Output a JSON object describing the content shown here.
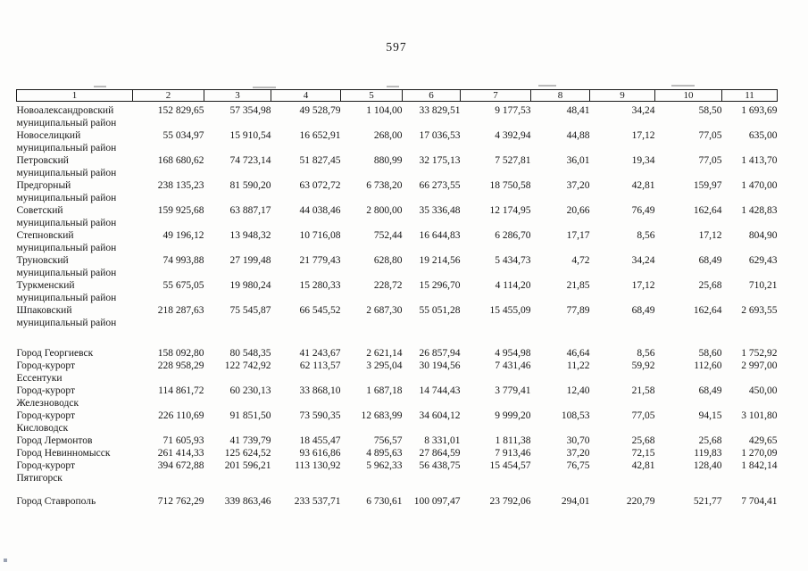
{
  "page": {
    "number": "597"
  },
  "table": {
    "columns": [
      "1",
      "2",
      "3",
      "4",
      "5",
      "6",
      "7",
      "8",
      "9",
      "10",
      "11"
    ],
    "rows": [
      {
        "name_lines": [
          "Новоалександровский",
          "муниципальный район"
        ],
        "values": [
          "152 829,65",
          "57 354,98",
          "49 528,79",
          "1 104,00",
          "33 829,51",
          "9 177,53",
          "48,41",
          "34,24",
          "58,50",
          "1 693,69"
        ]
      },
      {
        "name_lines": [
          "Новоселицкий",
          "муниципальный район"
        ],
        "values": [
          "55 034,97",
          "15 910,54",
          "16 652,91",
          "268,00",
          "17 036,53",
          "4 392,94",
          "44,88",
          "17,12",
          "77,05",
          "635,00"
        ]
      },
      {
        "name_lines": [
          "Петровский",
          "муниципальный район"
        ],
        "values": [
          "168 680,62",
          "74 723,14",
          "51 827,45",
          "880,99",
          "32 175,13",
          "7 527,81",
          "36,01",
          "19,34",
          "77,05",
          "1 413,70"
        ]
      },
      {
        "name_lines": [
          "Предгорный",
          "муниципальный район"
        ],
        "values": [
          "238 135,23",
          "81 590,20",
          "63 072,72",
          "6 738,20",
          "66 273,55",
          "18 750,58",
          "37,20",
          "42,81",
          "159,97",
          "1 470,00"
        ]
      },
      {
        "name_lines": [
          "Советский",
          "муниципальный район"
        ],
        "values": [
          "159 925,68",
          "63 887,17",
          "44 038,46",
          "2 800,00",
          "35 336,48",
          "12 174,95",
          "20,66",
          "76,49",
          "162,64",
          "1 428,83"
        ]
      },
      {
        "name_lines": [
          "Степновский",
          "муниципальный район"
        ],
        "values": [
          "49 196,12",
          "13 948,32",
          "10 716,08",
          "752,44",
          "16 644,83",
          "6 286,70",
          "17,17",
          "8,56",
          "17,12",
          "804,90"
        ]
      },
      {
        "name_lines": [
          "Труновский",
          "муниципальный район"
        ],
        "values": [
          "74 993,88",
          "27 199,48",
          "21 779,43",
          "628,80",
          "19 214,56",
          "5 434,73",
          "4,72",
          "34,24",
          "68,49",
          "629,43"
        ]
      },
      {
        "name_lines": [
          "Туркменский",
          "муниципальный район"
        ],
        "values": [
          "55 675,05",
          "19 980,24",
          "15 280,33",
          "228,72",
          "15 296,70",
          "4 114,20",
          "21,85",
          "17,12",
          "25,68",
          "710,21"
        ]
      },
      {
        "name_lines": [
          "Шпаковский",
          "муниципальный район"
        ],
        "values": [
          "218 287,63",
          "75 545,87",
          "66 545,52",
          "2 687,30",
          "55 051,28",
          "15 455,09",
          "77,89",
          "68,49",
          "162,64",
          "2 693,55"
        ]
      },
      {
        "gap_before": 20,
        "name_lines": [
          "Город Георгиевск"
        ],
        "values": [
          "158 092,80",
          "80 548,35",
          "41 243,67",
          "2 621,14",
          "26 857,94",
          "4 954,98",
          "46,64",
          "8,56",
          "58,60",
          "1 752,92"
        ]
      },
      {
        "name_lines": [
          "Город-курорт",
          "Ессентуки"
        ],
        "values": [
          "228 958,29",
          "122 742,92",
          "62 113,57",
          "3 295,04",
          "30 194,56",
          "7 431,46",
          "11,22",
          "59,92",
          "112,60",
          "2 997,00"
        ]
      },
      {
        "name_lines": [
          "Город-курорт",
          "Железноводск"
        ],
        "values": [
          "114 861,72",
          "60 230,13",
          "33 868,10",
          "1 687,18",
          "14 744,43",
          "3 779,41",
          "12,40",
          "21,58",
          "68,49",
          "450,00"
        ]
      },
      {
        "name_lines": [
          "Город-курорт",
          "Кисловодск"
        ],
        "values": [
          "226 110,69",
          "91 851,50",
          "73 590,35",
          "12 683,99",
          "34 604,12",
          "9 999,20",
          "108,53",
          "77,05",
          "94,15",
          "3 101,80"
        ]
      },
      {
        "name_lines": [
          "Город Лермонтов"
        ],
        "values": [
          "71 605,93",
          "41 739,79",
          "18 455,47",
          "756,57",
          "8 331,01",
          "1 811,38",
          "30,70",
          "25,68",
          "25,68",
          "429,65"
        ]
      },
      {
        "name_lines": [
          "Город Невинномысск"
        ],
        "values": [
          "261 414,33",
          "125 624,52",
          "93 616,86",
          "4 895,63",
          "27 864,59",
          "7 913,46",
          "37,20",
          "72,15",
          "119,83",
          "1 270,09"
        ]
      },
      {
        "name_lines": [
          "Город-курорт",
          "Пятигорск"
        ],
        "values": [
          "394 672,88",
          "201 596,21",
          "113 130,92",
          "5 962,33",
          "56 438,75",
          "15 454,57",
          "76,75",
          "42,81",
          "128,40",
          "1 842,14"
        ]
      },
      {
        "gap_before": 12,
        "name_lines": [
          "Город Ставрополь"
        ],
        "values": [
          "712 762,29",
          "339 863,46",
          "233 537,71",
          "6 730,61",
          "100 097,47",
          "23 792,06",
          "294,01",
          "220,79",
          "521,77",
          "7 704,41"
        ]
      }
    ]
  }
}
